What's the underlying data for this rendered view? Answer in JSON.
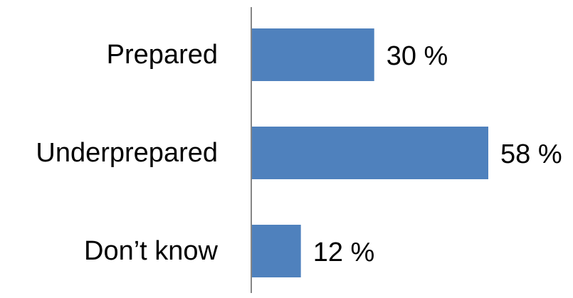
{
  "chart_data": {
    "type": "bar",
    "orientation": "horizontal",
    "title": "",
    "xlabel": "",
    "ylabel": "",
    "categories": [
      "Prepared",
      "Underprepared",
      "Don’t know"
    ],
    "values": [
      30,
      58,
      12
    ],
    "data_labels": [
      "30 %",
      "58 %",
      "12 %"
    ],
    "unit": "%",
    "xlim": [
      0,
      60
    ],
    "grid": false,
    "legend": "none",
    "bar_color": "#4f81bd",
    "axis_color": "#868686"
  }
}
